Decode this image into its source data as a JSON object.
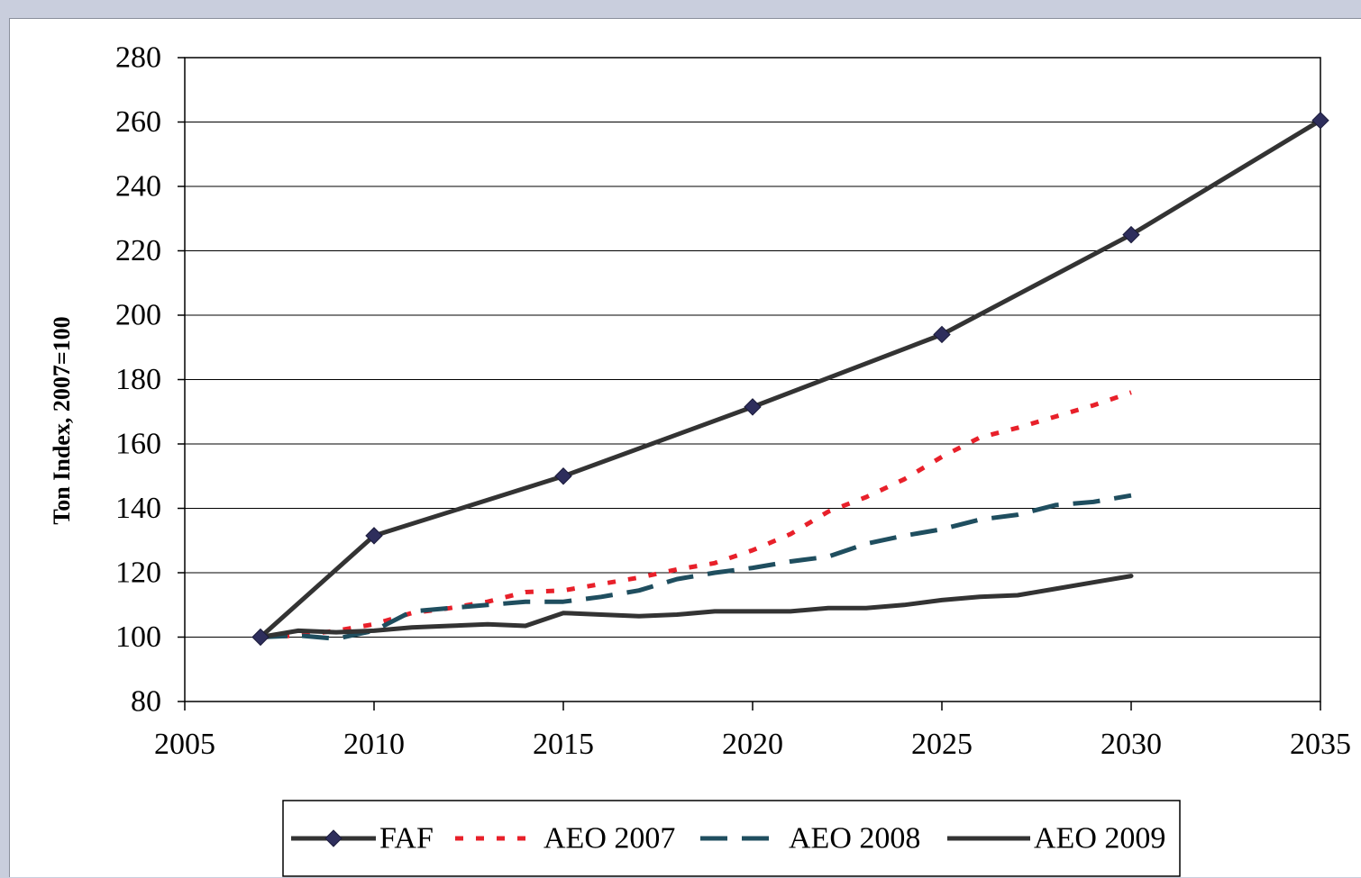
{
  "chart_data": {
    "type": "line",
    "title": "",
    "xlabel": "",
    "ylabel": "Ton Index, 2007=100",
    "xlim": [
      2005,
      2035
    ],
    "ylim": [
      80,
      280
    ],
    "x_ticks": [
      "2005",
      "2010",
      "2015",
      "2020",
      "2025",
      "2030",
      "2035"
    ],
    "y_ticks": [
      "80",
      "100",
      "120",
      "140",
      "160",
      "180",
      "200",
      "220",
      "240",
      "260",
      "280"
    ],
    "grid": "horizontal",
    "legend_position": "bottom",
    "series": [
      {
        "name": "FAF",
        "color": "#333333",
        "style": "solid-diamond",
        "x": [
          2007,
          2010,
          2015,
          2020,
          2025,
          2030,
          2035
        ],
        "y": [
          100,
          131.5,
          150,
          171.5,
          194,
          225,
          260.5
        ]
      },
      {
        "name": "AEO 2007",
        "color": "#e8202a",
        "style": "dotted",
        "x": [
          2007,
          2008,
          2009,
          2010,
          2011,
          2012,
          2013,
          2014,
          2015,
          2016,
          2017,
          2018,
          2019,
          2020,
          2021,
          2022,
          2023,
          2024,
          2025,
          2026,
          2027,
          2028,
          2029,
          2030
        ],
        "y": [
          100,
          100.5,
          102,
          104,
          107.5,
          109,
          111,
          114,
          114.5,
          116.5,
          118.5,
          121,
          123,
          127,
          132,
          139,
          143.5,
          149,
          156,
          162,
          165,
          168.5,
          172,
          176
        ]
      },
      {
        "name": "AEO 2008",
        "color": "#1f4e5f",
        "style": "dashed",
        "x": [
          2007,
          2008,
          2009,
          2010,
          2011,
          2012,
          2013,
          2014,
          2015,
          2016,
          2017,
          2018,
          2019,
          2020,
          2021,
          2022,
          2023,
          2024,
          2025,
          2026,
          2027,
          2028,
          2029,
          2030
        ],
        "y": [
          100,
          100.5,
          99.5,
          102,
          108,
          109,
          110,
          111,
          111,
          112.5,
          114.5,
          118,
          120,
          121.5,
          123.5,
          125,
          129,
          131.5,
          133.5,
          136.5,
          138,
          141,
          142,
          144
        ]
      },
      {
        "name": "AEO 2009",
        "color": "#333333",
        "style": "solid",
        "x": [
          2007,
          2008,
          2009,
          2010,
          2011,
          2012,
          2013,
          2014,
          2015,
          2016,
          2017,
          2018,
          2019,
          2020,
          2021,
          2022,
          2023,
          2024,
          2025,
          2026,
          2027,
          2028,
          2029,
          2030
        ],
        "y": [
          100,
          102,
          101.5,
          102,
          103,
          103.5,
          104,
          103.5,
          107.5,
          107,
          106.5,
          107,
          108,
          108,
          108,
          109,
          109,
          110,
          111.5,
          112.5,
          113,
          115,
          117,
          119
        ]
      }
    ]
  }
}
